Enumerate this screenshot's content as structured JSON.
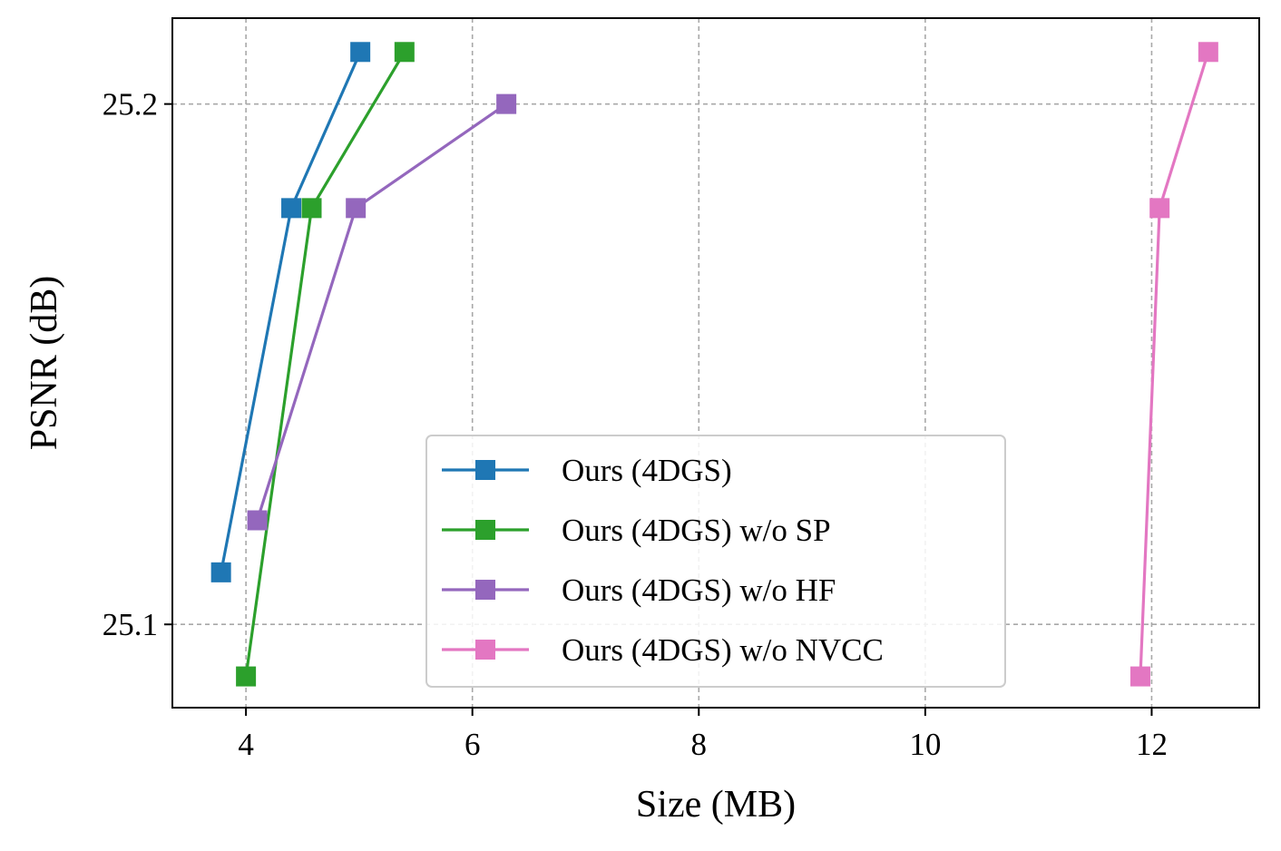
{
  "chart_data": {
    "type": "line",
    "title": "",
    "xlabel": "Size (MB)",
    "ylabel": "PSNR (dB)",
    "xlim": [
      3.35,
      12.95
    ],
    "ylim": [
      25.084,
      25.2165
    ],
    "xticks": [
      4,
      6,
      8,
      10,
      12
    ],
    "xtick_labels": [
      "4",
      "6",
      "8",
      "10",
      "12"
    ],
    "yticks": [
      25.1,
      25.2
    ],
    "ytick_labels": [
      "25.1",
      "25.2"
    ],
    "grid": true,
    "legend_position": "lower-center",
    "marker": "square",
    "series": [
      {
        "name": "Ours (4DGS)",
        "color": "#1f77b4",
        "x": [
          3.78,
          4.4,
          5.01
        ],
        "y": [
          25.11,
          25.18,
          25.21
        ]
      },
      {
        "name": "Ours (4DGS) w/o SP",
        "color": "#2ca02c",
        "x": [
          4.0,
          4.58,
          5.4
        ],
        "y": [
          25.09,
          25.18,
          25.21
        ]
      },
      {
        "name": "Ours (4DGS) w/o HF",
        "color": "#9467bd",
        "x": [
          4.1,
          4.97,
          6.3
        ],
        "y": [
          25.12,
          25.18,
          25.2
        ]
      },
      {
        "name": "Ours (4DGS) w/o NVCC",
        "color": "#e377c2",
        "x": [
          11.9,
          12.07,
          12.5
        ],
        "y": [
          25.09,
          25.18,
          25.21
        ]
      }
    ]
  }
}
